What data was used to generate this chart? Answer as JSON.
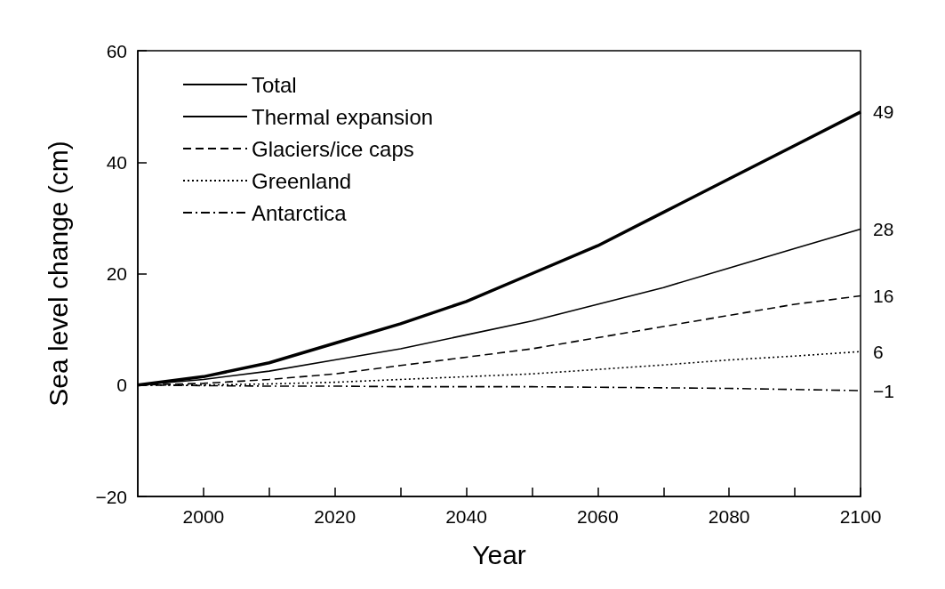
{
  "chart_data": {
    "type": "line",
    "xlabel": "Year",
    "ylabel": "Sea level change (cm)",
    "x": [
      1990,
      2000,
      2010,
      2020,
      2030,
      2040,
      2050,
      2060,
      2070,
      2080,
      2090,
      2100
    ],
    "series": [
      {
        "name": "Total",
        "color": "#000000",
        "line_style": "solid",
        "values": [
          0,
          1.5,
          4,
          7.5,
          11,
          15,
          20,
          25,
          31,
          37,
          43,
          49
        ],
        "value_labels": [
          null,
          null,
          null,
          null,
          null,
          null,
          null,
          null,
          null,
          null,
          null,
          "49"
        ]
      },
      {
        "name": "Thermal expansion",
        "color": "#000000",
        "line_style": "solid",
        "values": [
          0,
          1,
          2.5,
          4.5,
          6.5,
          9,
          11.5,
          14.5,
          17.5,
          21,
          24.5,
          28
        ],
        "value_labels": [
          null,
          null,
          null,
          null,
          null,
          null,
          null,
          null,
          null,
          null,
          null,
          "28"
        ]
      },
      {
        "name": "Glaciers/ice caps",
        "color": "#000000",
        "line_style": "dashed",
        "values": [
          0,
          0.3,
          1,
          2,
          3.5,
          5,
          6.5,
          8.5,
          10.5,
          12.5,
          14.5,
          16
        ],
        "value_labels": [
          null,
          null,
          null,
          null,
          null,
          null,
          null,
          null,
          null,
          null,
          null,
          "16"
        ]
      },
      {
        "name": "Greenland",
        "color": "#000000",
        "line_style": "dotted",
        "values": [
          0,
          0,
          0.2,
          0.5,
          1,
          1.5,
          2,
          2.8,
          3.6,
          4.5,
          5.2,
          6
        ],
        "value_labels": [
          null,
          null,
          null,
          null,
          null,
          null,
          null,
          null,
          null,
          null,
          null,
          "6"
        ]
      },
      {
        "name": "Antarctica",
        "color": "#000000",
        "line_style": "dashdot",
        "values": [
          0,
          -0.1,
          -0.2,
          -0.2,
          -0.3,
          -0.3,
          -0.3,
          -0.4,
          -0.5,
          -0.6,
          -0.8,
          -1
        ],
        "value_labels": [
          null,
          null,
          null,
          null,
          null,
          null,
          null,
          null,
          null,
          null,
          null,
          "−1"
        ]
      }
    ],
    "xlim": [
      1990,
      2100
    ],
    "xticks": [
      2000,
      {
        "value": 2010,
        "label": null
      },
      2020,
      {
        "value": 2030,
        "label": null
      },
      2040,
      {
        "value": 2050,
        "label": null
      },
      2060,
      {
        "value": 2070,
        "label": null
      },
      2080,
      {
        "value": 2090,
        "label": null
      },
      2100
    ],
    "ylim": [
      -20,
      60
    ],
    "yticks": [
      -20,
      0,
      20,
      40,
      60
    ],
    "grid": false,
    "legend": "top left",
    "marker": "none"
  }
}
